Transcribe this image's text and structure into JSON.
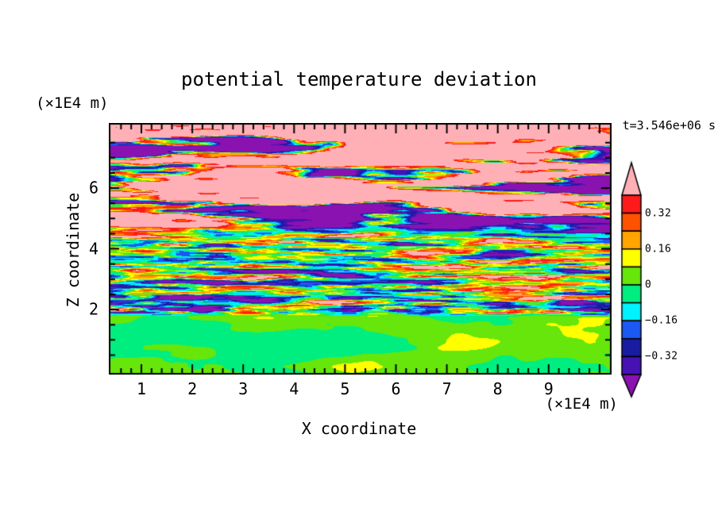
{
  "chart_data": {
    "type": "heatmap",
    "title": "potential temperature deviation",
    "xlabel": "X coordinate",
    "ylabel": "Z coordinate",
    "time_label": "t=3.546e+06 s",
    "x_axis": {
      "units_label": "(×1E4 m)",
      "ticks": [
        1,
        2,
        3,
        4,
        5,
        6,
        7,
        8,
        9
      ],
      "minor_step": 0.2,
      "range": [
        0.36,
        10.23
      ]
    },
    "z_axis": {
      "units_label": "(×1E4 m)",
      "ticks": [
        2,
        4,
        6
      ],
      "minor_step": 0.5,
      "range": [
        -0.15,
        8.15
      ]
    },
    "contour_levels": [
      -0.4,
      -0.32,
      -0.24,
      -0.16,
      -0.08,
      0,
      0.08,
      0.16,
      0.24,
      0.32,
      0.4
    ],
    "level_colors": [
      "#8A12B0",
      "#4612B4",
      "#181CA0",
      "#1C58F2",
      "#00F2FF",
      "#00EE80",
      "#66E60A",
      "#FFFF00",
      "#FFA400",
      "#FF5200",
      "#FC1A1A",
      "#FFB0B6"
    ],
    "colorbar": {
      "labels": [
        "0.32",
        "0.16",
        "0",
        "−0.16",
        "−0.32"
      ],
      "label_boundaries": [
        1,
        3,
        5,
        7,
        9
      ],
      "top_arrow_color": "#FFB0B6",
      "bottom_arrow_color": "#8A12B0"
    },
    "field_bands": [
      {
        "z_range": [
          5.1,
          8.15
        ],
        "character": "large-amplitude layered anomalies saturating beyond ±0.4: pink/purple horizontal plateaus with thin rainbow rims"
      },
      {
        "z_range": [
          2.1,
          5.1
        ],
        "character": "turbulent thin horizontal streaks spanning about −0.4 to +0.4 over green/cyan background"
      },
      {
        "z_range": [
          -0.15,
          2.1
        ],
        "character": "weak anomalies within ±0.08: uniform spring-green region with light-green blobs"
      }
    ]
  },
  "render": {
    "seed": 7
  }
}
